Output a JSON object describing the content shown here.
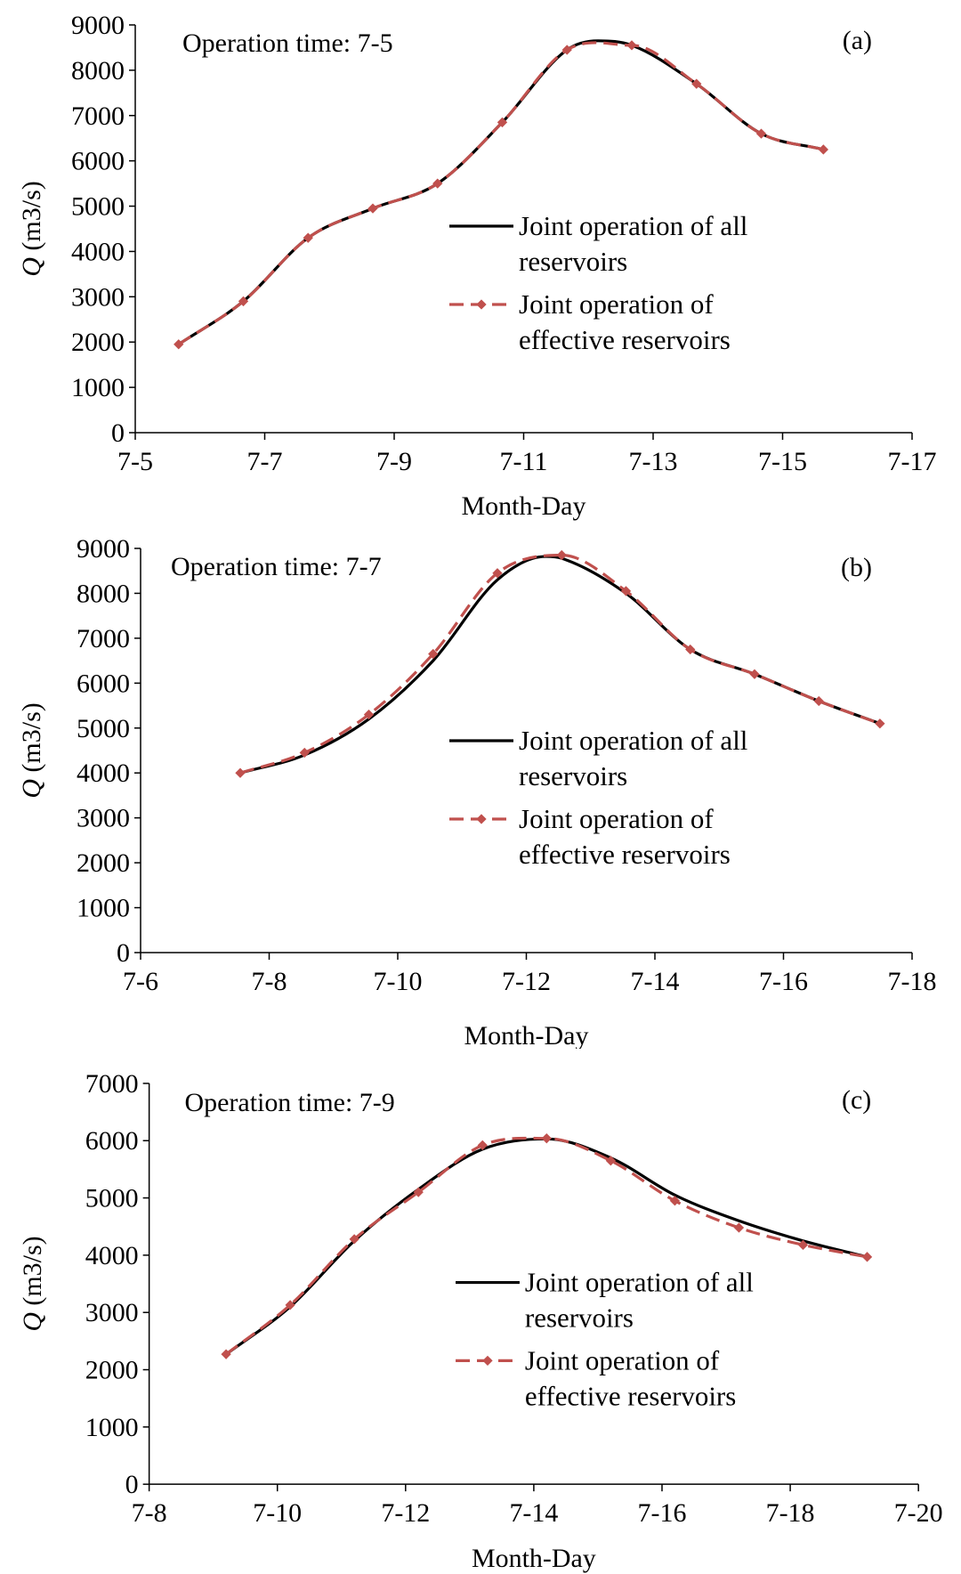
{
  "colors": {
    "all": "#000000",
    "effective": "#c0504d",
    "axis": "#000000"
  },
  "chart_data": [
    {
      "type": "line",
      "panel_label": "(a)",
      "annotation": "Operation time: 7-5",
      "xlabel": "Month-Day",
      "ylabel_main": "Q",
      "ylabel_unit": " (m3/s)",
      "xlim": [
        5,
        17
      ],
      "ylim": [
        0,
        9000
      ],
      "xticks": [
        5,
        7,
        9,
        11,
        13,
        15,
        17
      ],
      "xtick_labels": [
        "7-5",
        "7-7",
        "7-9",
        "7-11",
        "7-13",
        "7-15",
        "7-17"
      ],
      "yticks": [
        0,
        1000,
        2000,
        3000,
        4000,
        5000,
        6000,
        7000,
        8000,
        9000
      ],
      "ytick_labels": [
        "0",
        "1000",
        "2000",
        "3000",
        "4000",
        "5000",
        "6000",
        "7000",
        "8000",
        "9000"
      ],
      "legend": [
        {
          "key": "all",
          "lines": [
            "Joint operation  of all",
            "reservoirs"
          ]
        },
        {
          "key": "effective",
          "lines": [
            "Joint operation of",
            "effective reservoirs"
          ]
        }
      ],
      "series": [
        {
          "name": "Joint operation of all reservoirs",
          "key": "all",
          "x": [
            5.67,
            6.67,
            7.67,
            8.67,
            9.67,
            10.67,
            11.67,
            12.15,
            12.67,
            13.67,
            14.67,
            15.63
          ],
          "y": [
            1950,
            2900,
            4300,
            4950,
            5500,
            6850,
            8450,
            8650,
            8550,
            7700,
            6600,
            6250
          ]
        },
        {
          "name": "Joint operation of effective reservoirs",
          "key": "effective",
          "x": [
            5.67,
            6.67,
            7.67,
            8.67,
            9.67,
            10.67,
            11.67,
            12.67,
            13.67,
            14.67,
            15.63
          ],
          "y": [
            1950,
            2900,
            4300,
            4950,
            5500,
            6850,
            8450,
            8550,
            7700,
            6600,
            6250
          ]
        }
      ]
    },
    {
      "type": "line",
      "panel_label": "(b)",
      "annotation": "Operation time: 7-7",
      "xlabel": "Month-Day",
      "ylabel_main": "Q",
      "ylabel_unit": " (m3/s)",
      "xlim": [
        6,
        18
      ],
      "ylim": [
        0,
        9000
      ],
      "xticks": [
        6,
        8,
        10,
        12,
        14,
        16,
        18
      ],
      "xtick_labels": [
        "7-6",
        "7-8",
        "7-10",
        "7-12",
        "7-14",
        "7-16",
        "7-18"
      ],
      "yticks": [
        0,
        1000,
        2000,
        3000,
        4000,
        5000,
        6000,
        7000,
        8000,
        9000
      ],
      "ytick_labels": [
        "0",
        "1000",
        "2000",
        "3000",
        "4000",
        "5000",
        "6000",
        "7000",
        "8000",
        "9000"
      ],
      "legend": [
        {
          "key": "all",
          "lines": [
            "Joint operation  of all",
            "reservoirs"
          ]
        },
        {
          "key": "effective",
          "lines": [
            "Joint operation of",
            "effective reservoirs"
          ]
        }
      ],
      "series": [
        {
          "name": "Joint operation of all reservoirs",
          "key": "all",
          "x": [
            7.55,
            8.55,
            9.55,
            10.55,
            11.55,
            12.3,
            12.55,
            13.55,
            14.55,
            15.55,
            16.55,
            17.5
          ],
          "y": [
            4000,
            4400,
            5200,
            6500,
            8300,
            8820,
            8780,
            8000,
            6750,
            6200,
            5600,
            5100
          ]
        },
        {
          "name": "Joint operation of effective reservoirs",
          "key": "effective",
          "x": [
            7.55,
            8.55,
            9.55,
            10.55,
            11.55,
            12.55,
            13.55,
            14.55,
            15.55,
            16.55,
            17.5
          ],
          "y": [
            4000,
            4450,
            5300,
            6650,
            8450,
            8850,
            8050,
            6750,
            6200,
            5600,
            5100
          ]
        }
      ]
    },
    {
      "type": "line",
      "panel_label": "(c)",
      "annotation": "Operation time: 7-9",
      "xlabel": "Month-Day",
      "ylabel_main": "Q",
      "ylabel_unit": " (m3/s)",
      "xlim": [
        8,
        20
      ],
      "ylim": [
        0,
        7000
      ],
      "xticks": [
        8,
        10,
        12,
        14,
        16,
        18,
        20
      ],
      "xtick_labels": [
        "7-8",
        "7-10",
        "7-12",
        "7-14",
        "7-16",
        "7-18",
        "7-20"
      ],
      "yticks": [
        0,
        1000,
        2000,
        3000,
        4000,
        5000,
        6000,
        7000
      ],
      "ytick_labels": [
        "0",
        "1000",
        "2000",
        "3000",
        "4000",
        "5000",
        "6000",
        "7000"
      ],
      "legend": [
        {
          "key": "all",
          "lines": [
            "Joint operation  of all",
            "reservoirs"
          ]
        },
        {
          "key": "effective",
          "lines": [
            "Joint operation of",
            "effective reservoirs"
          ]
        }
      ],
      "series": [
        {
          "name": "Joint operation of all reservoirs",
          "key": "all",
          "x": [
            9.2,
            10.2,
            11.2,
            12.2,
            13.2,
            14.2,
            15.2,
            16.2,
            17.2,
            18.2,
            19.2
          ],
          "y": [
            2270,
            3100,
            4250,
            5150,
            5850,
            6030,
            5700,
            5050,
            4600,
            4250,
            3970
          ]
        },
        {
          "name": "Joint operation of effective reservoirs",
          "key": "effective",
          "x": [
            9.2,
            10.2,
            11.2,
            12.2,
            13.2,
            14.2,
            15.2,
            16.2,
            17.2,
            18.2,
            19.2
          ],
          "y": [
            2270,
            3130,
            4280,
            5100,
            5920,
            6040,
            5650,
            4950,
            4480,
            4180,
            3970
          ]
        }
      ]
    }
  ]
}
